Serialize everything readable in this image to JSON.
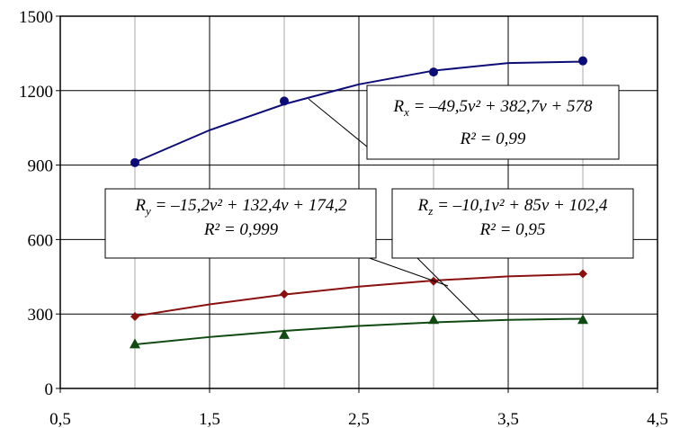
{
  "chart_data": {
    "type": "scatter",
    "xlim": [
      0.5,
      4.5
    ],
    "xticks": [
      {
        "value": 0.5,
        "label": "0,5"
      },
      {
        "value": 1.5,
        "label": "1,5"
      },
      {
        "value": 2.5,
        "label": "2,5"
      },
      {
        "value": 3.5,
        "label": "3,5"
      },
      {
        "value": 4.5,
        "label": "4,5"
      }
    ],
    "x_minor_grid": [
      1,
      2,
      3,
      4
    ],
    "ylim": [
      0,
      1500
    ],
    "yticks": [
      0,
      300,
      600,
      900,
      1200,
      1500
    ],
    "grid": true,
    "series": [
      {
        "color": "#0c0c78",
        "marker": "circle",
        "x": [
          1,
          2,
          3,
          4
        ],
        "values": [
          910,
          1158,
          1275,
          1320
        ]
      },
      {
        "color": "#8b1010",
        "marker": "diamond",
        "x": [
          1,
          2,
          3,
          4
        ],
        "values": [
          290,
          380,
          432,
          462
        ]
      },
      {
        "color": "#0e4a12",
        "marker": "triangle",
        "x": [
          1,
          2,
          3,
          4
        ],
        "values": [
          180,
          218,
          278,
          278
        ]
      }
    ],
    "trendlines": [
      {
        "color": "#0c0c78",
        "x": [
          1,
          1.5,
          2,
          2.5,
          3,
          3.5,
          4
        ],
        "values": [
          911.2,
          1040.7,
          1145.4,
          1225.4,
          1280.6,
          1311.1,
          1316.8
        ]
      },
      {
        "color": "#8b1010",
        "x": [
          1,
          1.5,
          2,
          2.5,
          3,
          3.5,
          4
        ],
        "values": [
          291.4,
          338.6,
          378.2,
          410.2,
          434.6,
          451.4,
          460.6
        ]
      },
      {
        "color": "#0e4a12",
        "x": [
          1,
          1.5,
          2,
          2.5,
          3,
          3.5,
          4
        ],
        "values": [
          177.3,
          207.2,
          232,
          251.8,
          266.5,
          276.2,
          280.8
        ]
      }
    ],
    "annotations": [
      {
        "lhs": "R",
        "sub": "x",
        "rhs": " = –49,5v² + 382,7v + 578",
        "r2": "R² = 0,99"
      },
      {
        "lhs": "R",
        "sub": "y",
        "rhs": " = –15,2v² + 132,4v + 174,2",
        "r2": "R² = 0,999"
      },
      {
        "lhs": "R",
        "sub": "z",
        "rhs": " = –10,1v² + 85v + 102,4",
        "r2": "R² = 0,95"
      }
    ]
  }
}
